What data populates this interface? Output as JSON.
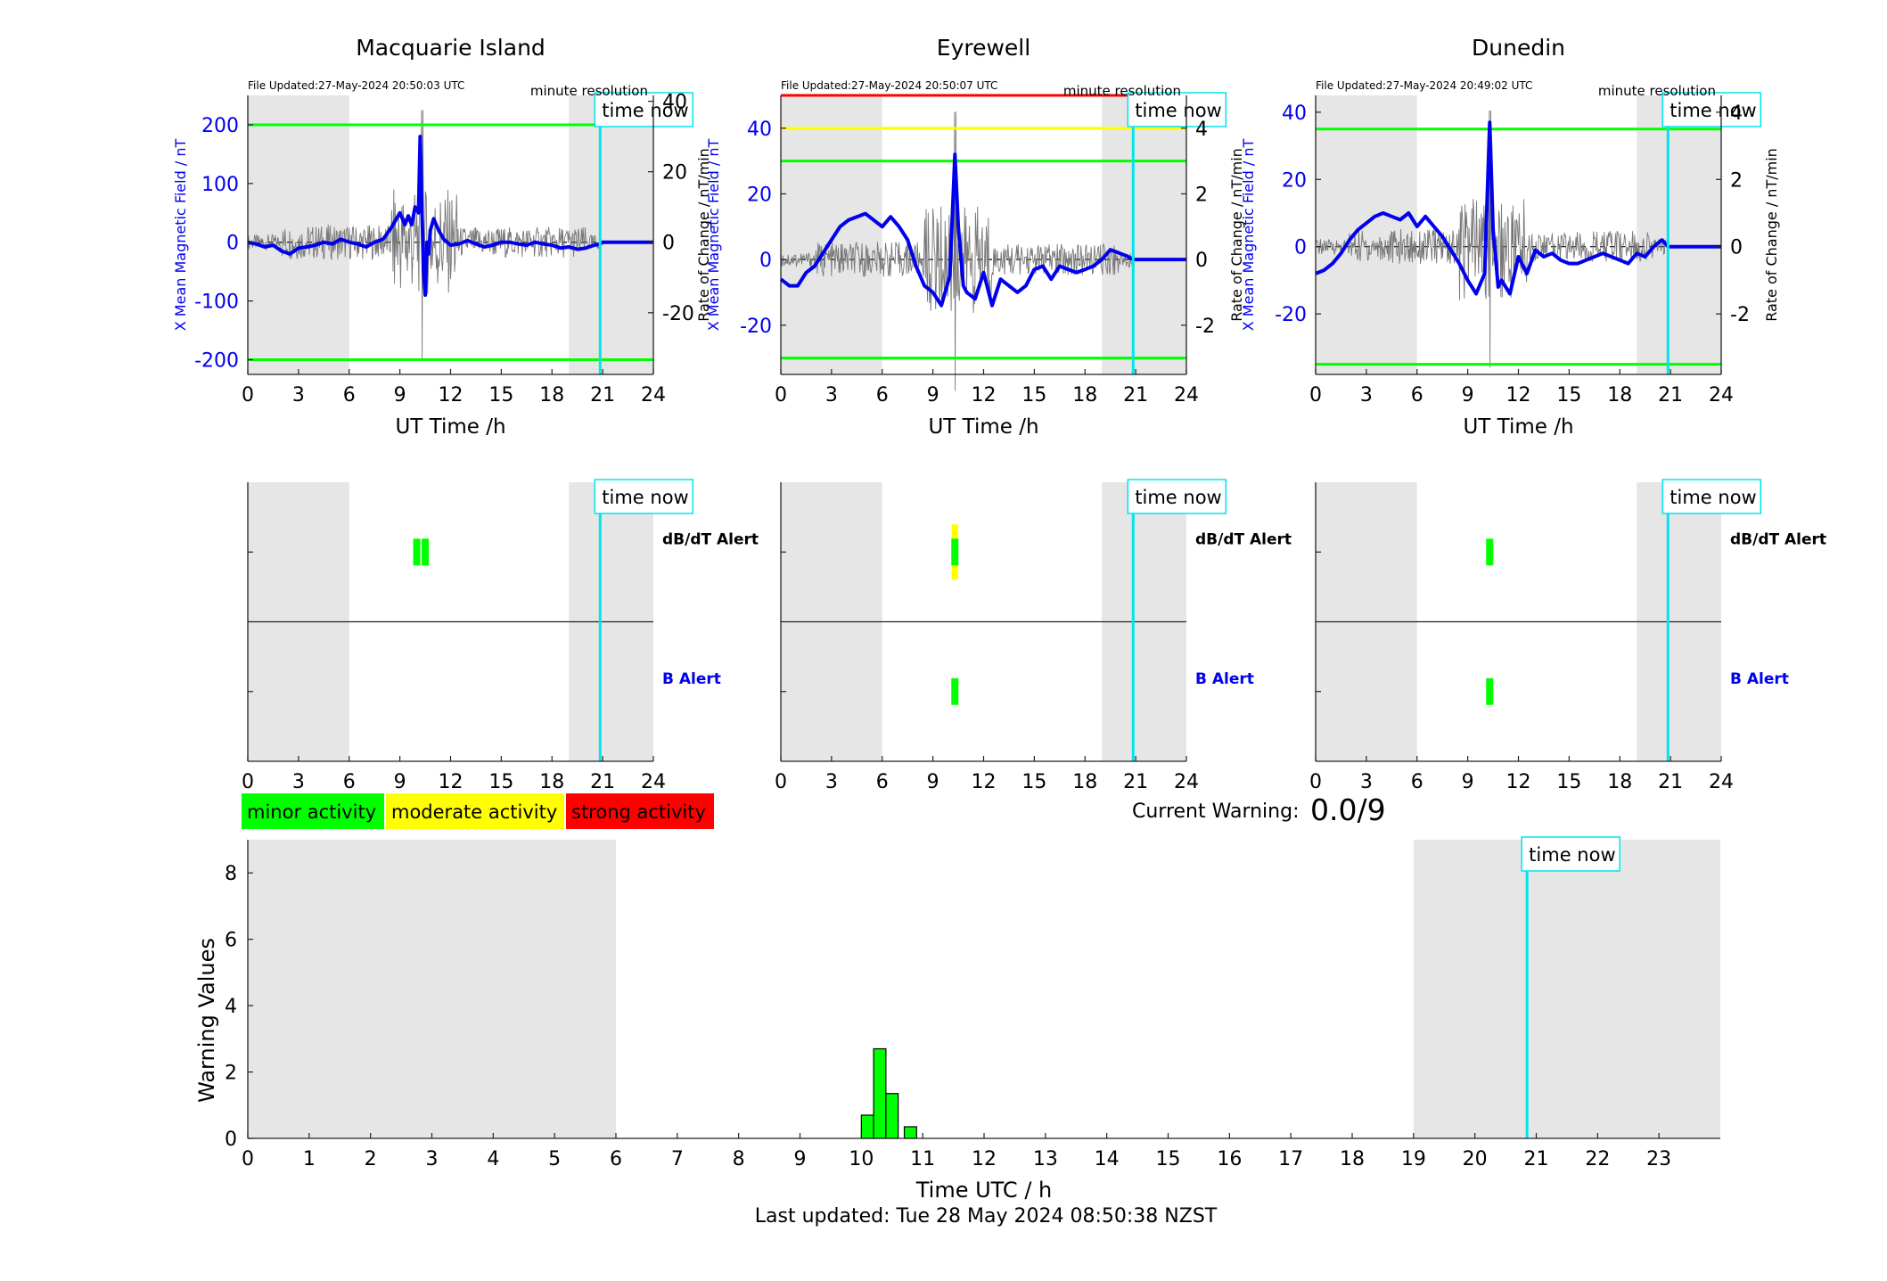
{
  "page": {
    "last_updated": "Last updated: Tue 28 May 2024 08:50:38 NZST"
  },
  "colors": {
    "minor": "#00ff00",
    "moderate": "#ffff00",
    "strong": "#ff0000",
    "field": "#0000ee",
    "time_now": "#00e5ee",
    "shade": "#e6e6e6"
  },
  "legend": {
    "minor": "minor activity",
    "moderate": "moderate activity",
    "strong": "strong activity"
  },
  "current_warning": {
    "label": "Current Warning:",
    "value": "0.0/9"
  },
  "time_now_label": "time now",
  "chart_data": [
    {
      "type": "line",
      "title": "Macquarie Island",
      "file_updated": "File Updated:27-May-2024 20:50:03 UTC",
      "resolution": "minute resolution",
      "xlabel": "UT Time /h",
      "ylabel_left": "X Mean Magnetic Field / nT",
      "ylabel_right": "Rate of Change / nT/min",
      "xlim": [
        0,
        24
      ],
      "ylim_left": [
        -225,
        250
      ],
      "ylim_right": [
        -37.5,
        41.67
      ],
      "xticks": [
        0,
        3,
        6,
        9,
        12,
        15,
        18,
        21,
        24
      ],
      "yticks_left": [
        -200,
        -100,
        0,
        100,
        200
      ],
      "yticks_right": [
        -20,
        0,
        20,
        40
      ],
      "shaded_x": [
        [
          0,
          6
        ],
        [
          19,
          24
        ]
      ],
      "time_now": 20.85,
      "thresholds": [
        {
          "y": 200,
          "level": "minor"
        },
        {
          "y": -200,
          "level": "minor"
        }
      ],
      "series": [
        {
          "x": [
            0,
            0.5,
            1,
            1.5,
            2,
            2.5,
            3,
            3.5,
            4,
            4.5,
            5,
            5.5,
            6,
            6.5,
            7,
            7.5,
            8,
            8.5,
            9,
            9.3,
            9.5,
            9.7,
            9.9,
            10.1,
            10.2,
            10.3,
            10.4,
            10.5,
            10.6,
            10.7,
            10.8,
            11,
            11.3,
            11.6,
            12,
            12.5,
            13,
            13.5,
            14,
            14.5,
            15,
            15.5,
            16,
            16.5,
            17,
            17.5,
            18,
            18.5,
            19,
            19.5,
            20,
            20.5,
            20.85,
            21,
            22,
            23,
            24
          ],
          "y": [
            0,
            -3,
            -8,
            -5,
            -15,
            -20,
            -10,
            -8,
            -5,
            0,
            -3,
            5,
            0,
            -3,
            -8,
            0,
            5,
            25,
            50,
            30,
            45,
            30,
            60,
            50,
            180,
            60,
            -50,
            -90,
            0,
            -20,
            20,
            40,
            20,
            5,
            -5,
            -3,
            3,
            -3,
            -8,
            -5,
            0,
            0,
            -3,
            -5,
            0,
            -3,
            -5,
            -10,
            -8,
            -12,
            -10,
            -5,
            -3,
            0,
            0,
            0,
            0
          ]
        }
      ]
    },
    {
      "type": "line",
      "title": "Eyrewell",
      "file_updated": "File Updated:27-May-2024 20:50:07 UTC",
      "resolution": "minute resolution",
      "xlabel": "UT Time /h",
      "ylabel_left": "X Mean Magnetic Field / nT",
      "ylabel_right": "Rate of Change / nT/min",
      "xlim": [
        0,
        24
      ],
      "ylim_left": [
        -35,
        50
      ],
      "ylim_right": [
        -3.5,
        5
      ],
      "xticks": [
        0,
        3,
        6,
        9,
        12,
        15,
        18,
        21,
        24
      ],
      "yticks_left": [
        -20,
        0,
        20,
        40
      ],
      "yticks_right": [
        -2,
        0,
        2,
        4
      ],
      "shaded_x": [
        [
          0,
          6
        ],
        [
          19,
          24
        ]
      ],
      "time_now": 20.85,
      "thresholds": [
        {
          "y": 50,
          "level": "strong"
        },
        {
          "y": 40,
          "level": "moderate"
        },
        {
          "y": 30,
          "level": "minor"
        },
        {
          "y": -30,
          "level": "minor"
        }
      ],
      "series": [
        {
          "x": [
            0,
            0.5,
            1,
            1.5,
            2,
            2.5,
            3,
            3.5,
            4,
            4.5,
            5,
            5.5,
            6,
            6.5,
            7,
            7.5,
            8,
            8.5,
            9,
            9.5,
            10,
            10.3,
            10.5,
            10.8,
            11,
            11.5,
            12,
            12.5,
            13,
            13.5,
            14,
            14.5,
            15,
            15.5,
            16,
            16.5,
            17,
            17.5,
            18,
            18.5,
            19,
            19.5,
            20,
            20.5,
            20.85,
            21,
            22,
            23,
            24
          ],
          "y": [
            -6,
            -8,
            -8,
            -4,
            -2,
            2,
            6,
            10,
            12,
            13,
            14,
            12,
            10,
            13,
            10,
            6,
            -2,
            -8,
            -10,
            -14,
            -5,
            32,
            10,
            -8,
            -10,
            -12,
            -4,
            -14,
            -6,
            -8,
            -10,
            -8,
            -3,
            -2,
            -6,
            -2,
            -3,
            -4,
            -3,
            -2,
            0,
            3,
            2,
            1,
            0,
            0,
            0,
            0,
            0
          ]
        }
      ]
    },
    {
      "type": "line",
      "title": "Dunedin",
      "file_updated": "File Updated:27-May-2024 20:49:02 UTC",
      "resolution": "minute resolution",
      "xlabel": "UT Time /h",
      "ylabel_left": "X Mean Magnetic Field / nT",
      "ylabel_right": "Rate of Change / nT/min",
      "xlim": [
        0,
        24
      ],
      "ylim_left": [
        -38,
        45
      ],
      "ylim_right": [
        -3.8,
        4.5
      ],
      "xticks": [
        0,
        3,
        6,
        9,
        12,
        15,
        18,
        21,
        24
      ],
      "yticks_left": [
        -20,
        0,
        20,
        40
      ],
      "yticks_right": [
        -2,
        0,
        2,
        4
      ],
      "shaded_x": [
        [
          0,
          6
        ],
        [
          19,
          24
        ]
      ],
      "time_now": 20.85,
      "thresholds": [
        {
          "y": 35,
          "level": "minor"
        },
        {
          "y": -35,
          "level": "minor"
        }
      ],
      "series": [
        {
          "x": [
            0,
            0.5,
            1,
            1.5,
            2,
            2.5,
            3,
            3.5,
            4,
            4.5,
            5,
            5.5,
            6,
            6.5,
            7,
            7.5,
            8,
            8.5,
            9,
            9.5,
            10,
            10.3,
            10.5,
            10.8,
            11,
            11.5,
            12,
            12.5,
            13,
            13.5,
            14,
            14.5,
            15,
            15.5,
            16,
            16.5,
            17,
            17.5,
            18,
            18.5,
            19,
            19.5,
            20,
            20.5,
            20.85,
            21,
            22,
            23,
            24
          ],
          "y": [
            -8,
            -7,
            -5,
            -2,
            2,
            5,
            7,
            9,
            10,
            9,
            8,
            10,
            6,
            9,
            6,
            3,
            -1,
            -5,
            -10,
            -14,
            -8,
            37,
            5,
            -12,
            -10,
            -14,
            -3,
            -8,
            -1,
            -3,
            -2,
            -4,
            -5,
            -5,
            -4,
            -3,
            -2,
            -3,
            -4,
            -5,
            -2,
            -3,
            0,
            2,
            0,
            0,
            0,
            0,
            0
          ]
        }
      ]
    },
    {
      "type": "alert",
      "xlim": [
        0,
        24
      ],
      "xticks": [
        0,
        3,
        6,
        9,
        12,
        15,
        18,
        21,
        24
      ],
      "shaded_x": [
        [
          0,
          6
        ],
        [
          19,
          24
        ]
      ],
      "time_now": 20.85,
      "rows": [
        {
          "label": "dB/dT Alert"
        },
        {
          "label": "B Alert"
        }
      ],
      "dbdt_bars": [
        {
          "x": 10,
          "level": "minor"
        },
        {
          "x": 10.5,
          "level": "minor"
        }
      ],
      "b_bars": []
    },
    {
      "type": "alert",
      "xlim": [
        0,
        24
      ],
      "xticks": [
        0,
        3,
        6,
        9,
        12,
        15,
        18,
        21,
        24
      ],
      "shaded_x": [
        [
          0,
          6
        ],
        [
          19,
          24
        ]
      ],
      "time_now": 20.85,
      "rows": [
        {
          "label": "dB/dT Alert"
        },
        {
          "label": "B Alert"
        }
      ],
      "dbdt_bars": [
        {
          "x": 10.3,
          "level": "moderate"
        },
        {
          "x": 10.3,
          "level": "minor"
        }
      ],
      "b_bars": [
        {
          "x": 10.3,
          "level": "minor"
        }
      ]
    },
    {
      "type": "alert",
      "xlim": [
        0,
        24
      ],
      "xticks": [
        0,
        3,
        6,
        9,
        12,
        15,
        18,
        21,
        24
      ],
      "shaded_x": [
        [
          0,
          6
        ],
        [
          19,
          24
        ]
      ],
      "time_now": 20.85,
      "rows": [
        {
          "label": "dB/dT Alert"
        },
        {
          "label": "B Alert"
        }
      ],
      "dbdt_bars": [
        {
          "x": 10.3,
          "level": "minor"
        }
      ],
      "b_bars": [
        {
          "x": 10.3,
          "level": "minor"
        }
      ]
    },
    {
      "type": "bar",
      "xlabel": "Time UTC / h",
      "ylabel": "Warning Values",
      "xlim": [
        0,
        24
      ],
      "ylim": [
        0,
        9
      ],
      "xticks": [
        0,
        1,
        2,
        3,
        4,
        5,
        6,
        7,
        8,
        9,
        10,
        11,
        12,
        13,
        14,
        15,
        16,
        17,
        18,
        19,
        20,
        21,
        22,
        23
      ],
      "yticks": [
        0,
        2,
        4,
        6,
        8
      ],
      "shaded_x": [
        [
          0,
          6
        ],
        [
          19,
          24
        ]
      ],
      "time_now": 20.85,
      "x": [
        10.1,
        10.3,
        10.5,
        10.8
      ],
      "values": [
        0.7,
        2.7,
        1.35,
        0.35
      ]
    }
  ]
}
